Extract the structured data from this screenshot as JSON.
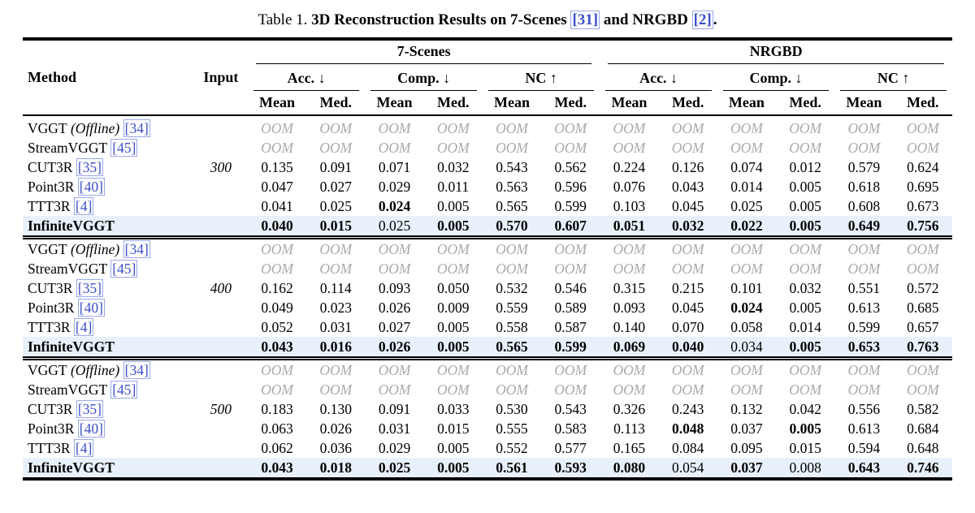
{
  "colors": {
    "link_blue": "#3c50c8",
    "link_box": "#9aa8ea",
    "highlight_row": "#e8f1fb",
    "oom_gray": "#a9a9a9"
  },
  "caption": {
    "prefix": "Table 1. ",
    "bold_1": "3D Reconstruction Results on 7-Scenes ",
    "cite_1": "[31]",
    "bold_2": " and NRGBD ",
    "cite_2": "[2]",
    "suffix": "."
  },
  "header": {
    "method": "Method",
    "input": "Input",
    "groups": [
      {
        "label": "7-Scenes"
      },
      {
        "label": "NRGBD"
      }
    ],
    "metrics": [
      "Acc. ↓",
      "Comp. ↓",
      "NC ↑",
      "Acc. ↓",
      "Comp. ↓",
      "NC ↑"
    ],
    "stats": [
      "Mean",
      "Med.",
      "Mean",
      "Med.",
      "Mean",
      "Med.",
      "Mean",
      "Med.",
      "Mean",
      "Med.",
      "Mean",
      "Med."
    ]
  },
  "oom_label": "OOM",
  "blocks": [
    {
      "input": "300",
      "rows": [
        {
          "method": "VGGT",
          "italic": " (Offline) ",
          "cite": "[34]",
          "oom": true
        },
        {
          "method": "StreamVGGT ",
          "cite": "[45]",
          "oom": true
        },
        {
          "method": "CUT3R ",
          "cite": "[35]",
          "values": [
            "0.135",
            "0.091",
            "0.071",
            "0.032",
            "0.543",
            "0.562",
            "0.224",
            "0.126",
            "0.074",
            "0.012",
            "0.579",
            "0.624"
          ],
          "bold": [
            0,
            0,
            0,
            0,
            0,
            0,
            0,
            0,
            0,
            0,
            0,
            0
          ]
        },
        {
          "method": "Point3R ",
          "cite": "[40]",
          "values": [
            "0.047",
            "0.027",
            "0.029",
            "0.011",
            "0.563",
            "0.596",
            "0.076",
            "0.043",
            "0.014",
            "0.005",
            "0.618",
            "0.695"
          ],
          "bold": [
            0,
            0,
            0,
            0,
            0,
            0,
            0,
            0,
            0,
            0,
            0,
            0
          ]
        },
        {
          "method": "TTT3R ",
          "cite": "[4]",
          "values": [
            "0.041",
            "0.025",
            "0.024",
            "0.005",
            "0.565",
            "0.599",
            "0.103",
            "0.045",
            "0.025",
            "0.005",
            "0.608",
            "0.673"
          ],
          "bold": [
            0,
            0,
            1,
            0,
            0,
            0,
            0,
            0,
            0,
            0,
            0,
            0
          ]
        },
        {
          "method": "InfiniteVGGT",
          "highlight": true,
          "values": [
            "0.040",
            "0.015",
            "0.025",
            "0.005",
            "0.570",
            "0.607",
            "0.051",
            "0.032",
            "0.022",
            "0.005",
            "0.649",
            "0.756"
          ],
          "bold": [
            1,
            1,
            0,
            1,
            1,
            1,
            1,
            1,
            1,
            1,
            1,
            1
          ]
        }
      ]
    },
    {
      "input": "400",
      "rows": [
        {
          "method": "VGGT",
          "italic": " (Offline) ",
          "cite": "[34]",
          "oom": true
        },
        {
          "method": "StreamVGGT ",
          "cite": "[45]",
          "oom": true
        },
        {
          "method": "CUT3R ",
          "cite": "[35]",
          "values": [
            "0.162",
            "0.114",
            "0.093",
            "0.050",
            "0.532",
            "0.546",
            "0.315",
            "0.215",
            "0.101",
            "0.032",
            "0.551",
            "0.572"
          ],
          "bold": [
            0,
            0,
            0,
            0,
            0,
            0,
            0,
            0,
            0,
            0,
            0,
            0
          ]
        },
        {
          "method": "Point3R ",
          "cite": "[40]",
          "values": [
            "0.049",
            "0.023",
            "0.026",
            "0.009",
            "0.559",
            "0.589",
            "0.093",
            "0.045",
            "0.024",
            "0.005",
            "0.613",
            "0.685"
          ],
          "bold": [
            0,
            0,
            0,
            0,
            0,
            0,
            0,
            0,
            1,
            0,
            0,
            0
          ]
        },
        {
          "method": "TTT3R ",
          "cite": "[4]",
          "values": [
            "0.052",
            "0.031",
            "0.027",
            "0.005",
            "0.558",
            "0.587",
            "0.140",
            "0.070",
            "0.058",
            "0.014",
            "0.599",
            "0.657"
          ],
          "bold": [
            0,
            0,
            0,
            0,
            0,
            0,
            0,
            0,
            0,
            0,
            0,
            0
          ]
        },
        {
          "method": "InfiniteVGGT",
          "highlight": true,
          "values": [
            "0.043",
            "0.016",
            "0.026",
            "0.005",
            "0.565",
            "0.599",
            "0.069",
            "0.040",
            "0.034",
            "0.005",
            "0.653",
            "0.763"
          ],
          "bold": [
            1,
            1,
            1,
            1,
            1,
            1,
            1,
            1,
            0,
            1,
            1,
            1
          ]
        }
      ]
    },
    {
      "input": "500",
      "rows": [
        {
          "method": "VGGT",
          "italic": " (Offline) ",
          "cite": "[34]",
          "oom": true
        },
        {
          "method": "StreamVGGT ",
          "cite": "[45]",
          "oom": true
        },
        {
          "method": "CUT3R ",
          "cite": "[35]",
          "values": [
            "0.183",
            "0.130",
            "0.091",
            "0.033",
            "0.530",
            "0.543",
            "0.326",
            "0.243",
            "0.132",
            "0.042",
            "0.556",
            "0.582"
          ],
          "bold": [
            0,
            0,
            0,
            0,
            0,
            0,
            0,
            0,
            0,
            0,
            0,
            0
          ]
        },
        {
          "method": "Point3R ",
          "cite": "[40]",
          "values": [
            "0.063",
            "0.026",
            "0.031",
            "0.015",
            "0.555",
            "0.583",
            "0.113",
            "0.048",
            "0.037",
            "0.005",
            "0.613",
            "0.684"
          ],
          "bold": [
            0,
            0,
            0,
            0,
            0,
            0,
            0,
            1,
            0,
            1,
            0,
            0
          ]
        },
        {
          "method": "TTT3R ",
          "cite": "[4]",
          "values": [
            "0.062",
            "0.036",
            "0.029",
            "0.005",
            "0.552",
            "0.577",
            "0.165",
            "0.084",
            "0.095",
            "0.015",
            "0.594",
            "0.648"
          ],
          "bold": [
            0,
            0,
            0,
            0,
            0,
            0,
            0,
            0,
            0,
            0,
            0,
            0
          ]
        },
        {
          "method": "InfiniteVGGT",
          "highlight": true,
          "values": [
            "0.043",
            "0.018",
            "0.025",
            "0.005",
            "0.561",
            "0.593",
            "0.080",
            "0.054",
            "0.037",
            "0.008",
            "0.643",
            "0.746"
          ],
          "bold": [
            1,
            1,
            1,
            1,
            1,
            1,
            1,
            0,
            1,
            0,
            1,
            1
          ]
        }
      ]
    }
  ]
}
